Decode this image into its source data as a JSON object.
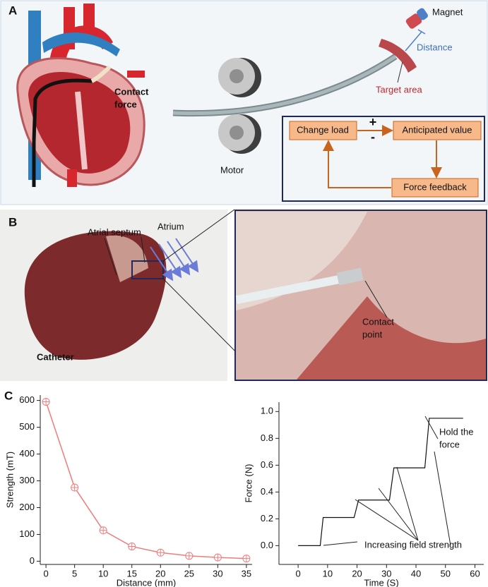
{
  "panel_a": {
    "label": "A",
    "magnet": "Magnet",
    "distance": "Distance",
    "target_area": "Target area",
    "contact_force": [
      "Contact",
      "force"
    ],
    "motor": "Motor",
    "change_load": "Change load",
    "plus": "+",
    "minus": "-",
    "anticipated_value": "Anticipated value",
    "force_feedback": "Force feedback"
  },
  "panel_b": {
    "label": "B",
    "atrial_septum": "Atrial septum",
    "atrium": "Atrium",
    "catheter": "Catheter",
    "contact_point": [
      "Contact",
      "point"
    ]
  },
  "panel_c": {
    "label": "C"
  },
  "chart_data": [
    {
      "type": "line",
      "marker": "circle-plus",
      "color": "#f07c7c",
      "xlabel": "Distance (mm)",
      "ylabel": "Strength (mT)",
      "x": [
        0,
        5,
        10,
        15,
        20,
        25,
        30,
        35
      ],
      "values": [
        595,
        275,
        115,
        55,
        32,
        20,
        14,
        10
      ],
      "xlim": [
        -1,
        36
      ],
      "ylim": [
        -12,
        620
      ],
      "xticks": [
        0,
        5,
        10,
        15,
        20,
        25,
        30,
        35
      ],
      "yticks": [
        0,
        100,
        200,
        300,
        400,
        500,
        600
      ]
    },
    {
      "type": "line",
      "color": "#111111",
      "xlabel": "Time (S)",
      "ylabel": "Force (N)",
      "x": [
        0,
        7.5,
        8.5,
        19,
        20.5,
        31,
        32.5,
        43,
        44.5,
        56
      ],
      "values": [
        0,
        0,
        0.21,
        0.21,
        0.34,
        0.34,
        0.58,
        0.58,
        0.95,
        0.95
      ],
      "xlim": [
        -6.5,
        63
      ],
      "ylim": [
        -0.14,
        1.07
      ],
      "xticks": [
        0,
        10,
        20,
        30,
        40,
        50,
        60
      ],
      "yticks": [
        {
          "value": 0,
          "label": "0.0"
        },
        0.2,
        0.4,
        0.6,
        0.8,
        {
          "value": 1,
          "label": "1.0"
        }
      ],
      "annotations": [
        {
          "lines": [
            "Hold the",
            "force"
          ]
        },
        {
          "lines": [
            "Increasing field strength"
          ]
        }
      ]
    }
  ]
}
